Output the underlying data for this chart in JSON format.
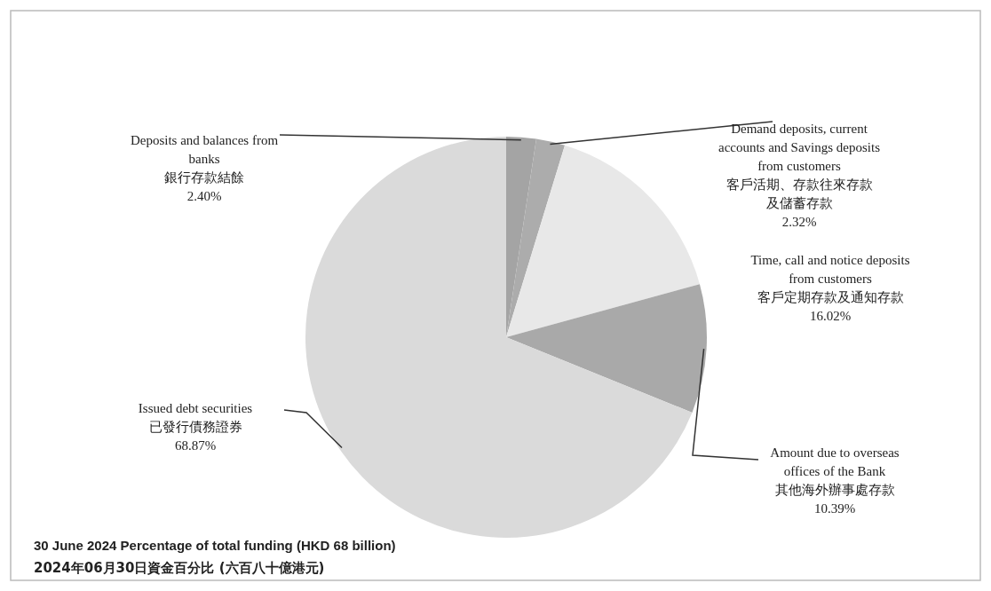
{
  "chart_data": {
    "type": "pie",
    "title": "30 June 2024 Percentage of total funding (HKD 68 billion)",
    "subtitle": "2024年06月30日資金百分比 (六百八十億港元)",
    "categories": [
      "Deposits and balances from\nbanks\n銀行存款結餘",
      "Demand deposits, current\naccounts and Savings deposits\nfrom customers\n客戶活期、存款往來存款及儲蓄存款",
      "Time, call and notice deposits\nfrom customers\n客戶定期存款及通知存款",
      "Amount due to overseas\noffices of the Bank\n其他海外辦事處存款",
      "Issued debt securities\n已發行債務證券"
    ],
    "values": [
      2.4,
      2.32,
      16.02,
      10.39,
      68.87
    ],
    "value_labels": [
      "2.40%",
      "2.32%",
      "16.02%",
      "10.39%",
      "68.87%"
    ],
    "colors": [
      "#a4a4a4",
      "#acacac",
      "#e8e8e8",
      "#a9a9a9",
      "#dadada"
    ]
  }
}
